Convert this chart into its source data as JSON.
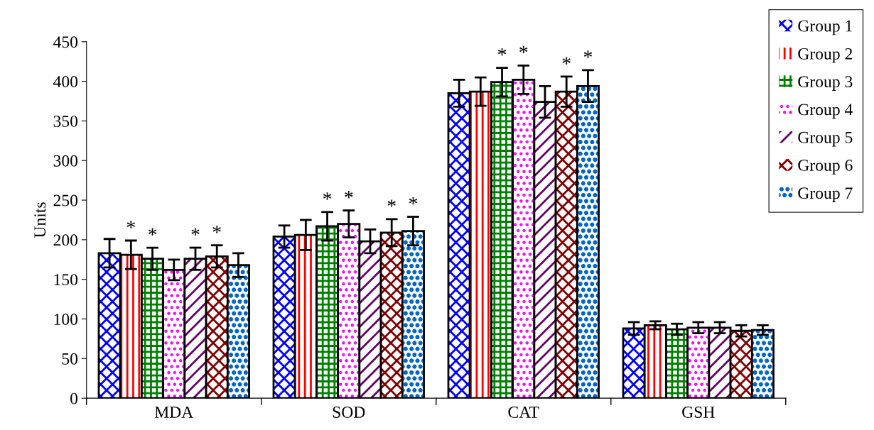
{
  "chart_data": {
    "type": "bar",
    "ylabel": "Units",
    "categories": [
      "MDA",
      "SOD",
      "CAT",
      "GSH"
    ],
    "series": [
      {
        "name": "Group 1",
        "color": "#0000ff",
        "values": [
          183,
          204,
          385,
          88
        ],
        "errors": [
          18,
          14,
          17,
          8
        ],
        "value_labels": [
          null,
          null,
          null,
          null
        ]
      },
      {
        "name": "Group 2",
        "color": "#ff0000",
        "values": [
          181,
          206,
          387,
          92
        ],
        "errors": [
          18,
          19,
          18,
          5
        ],
        "value_labels": [
          "*",
          null,
          null,
          null
        ]
      },
      {
        "name": "Group 3",
        "color": "#008000",
        "values": [
          176,
          217,
          399,
          87
        ],
        "errors": [
          14,
          18,
          18,
          7
        ],
        "value_labels": [
          "*",
          "*",
          "*",
          null
        ]
      },
      {
        "name": "Group 4",
        "color": "#ff00ff",
        "values": [
          162,
          220,
          402,
          89
        ],
        "errors": [
          13,
          17,
          18,
          7
        ],
        "value_labels": [
          null,
          "*",
          "*",
          null
        ]
      },
      {
        "name": "Group 5",
        "color": "#660066",
        "values": [
          176,
          198,
          374,
          89
        ],
        "errors": [
          14,
          15,
          20,
          7
        ],
        "value_labels": [
          "*",
          null,
          null,
          null
        ]
      },
      {
        "name": "Group 6",
        "color": "#800000",
        "values": [
          179,
          209,
          387,
          85
        ],
        "errors": [
          14,
          17,
          19,
          7
        ],
        "value_labels": [
          "*",
          "*",
          "*",
          null
        ]
      },
      {
        "name": "Group 7",
        "color": "#0066cc",
        "values": [
          168,
          211,
          394,
          86
        ],
        "errors": [
          15,
          18,
          20,
          6
        ],
        "value_labels": [
          null,
          "*",
          "*",
          null
        ]
      }
    ],
    "ylim": [
      0,
      450
    ],
    "yticks": [
      0,
      50,
      100,
      150,
      200,
      250,
      300,
      350,
      400,
      450
    ],
    "grid": false,
    "legend": "top right"
  }
}
